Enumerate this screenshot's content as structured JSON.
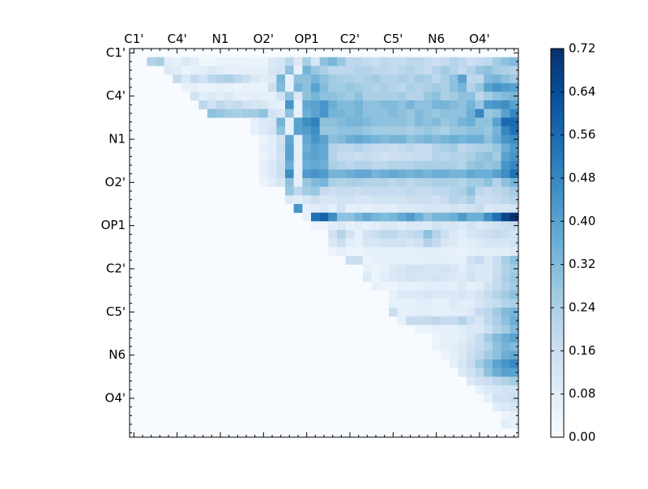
{
  "chart_data": {
    "type": "heatmap",
    "title": "",
    "xlabel": "",
    "ylabel": "",
    "grid": false,
    "legend": "colorbar-right",
    "colormap": "Blues",
    "colormap_stops": [
      "#f7fbff",
      "#deebf7",
      "#c6dbef",
      "#9ecae1",
      "#6baed6",
      "#4292c6",
      "#2171b5",
      "#08519c",
      "#08306b"
    ],
    "n": 45,
    "x_tick_labels": [
      "C1'",
      "C4'",
      "N1",
      "O2'",
      "OP1",
      "C2'",
      "C5'",
      "N6",
      "O4'"
    ],
    "y_tick_labels": [
      "C1'",
      "C4'",
      "N1",
      "O2'",
      "OP1",
      "C2'",
      "C5'",
      "N6",
      "O4'"
    ],
    "tick_index_positions": [
      0,
      5,
      10,
      15,
      20,
      25,
      30,
      35,
      40
    ],
    "value_range": [
      0.0,
      0.72
    ],
    "colorbar_ticks": [
      "0.00",
      "0.08",
      "0.16",
      "0.24",
      "0.32",
      "0.40",
      "0.48",
      "0.56",
      "0.64",
      "0.72"
    ],
    "row_bands": [
      {
        "row": 1,
        "start": 2,
        "values": [
          0.22,
          0.25,
          0.08,
          0.06,
          0.1,
          0.08,
          0.03,
          0.03,
          0.05,
          0.05,
          0.05,
          0.04,
          0.04,
          0.04,
          0.1,
          0.12,
          0.2,
          0.1,
          0.25,
          0.12,
          0.3,
          0.34,
          0.28,
          0.2,
          0.2,
          0.18,
          0.16,
          0.2,
          0.18,
          0.18,
          0.2,
          0.2,
          0.18,
          0.15,
          0.18,
          0.22,
          0.2,
          0.15,
          0.18,
          0.2,
          0.26,
          0.3,
          0.32
        ]
      },
      {
        "row": 2,
        "start": 4,
        "values": [
          0.1,
          0.08,
          0.04,
          0.06,
          0.08,
          0.1,
          0.08,
          0.06,
          0.06,
          0.06,
          0.06,
          0.06,
          0.12,
          0.14,
          0.3,
          0.06,
          0.34,
          0.28,
          0.24,
          0.2,
          0.2,
          0.2,
          0.22,
          0.22,
          0.2,
          0.2,
          0.18,
          0.2,
          0.22,
          0.2,
          0.18,
          0.22,
          0.26,
          0.22,
          0.18,
          0.22,
          0.28,
          0.3,
          0.26,
          0.24,
          0.22
        ]
      },
      {
        "row": 3,
        "start": 5,
        "values": [
          0.18,
          0.1,
          0.18,
          0.14,
          0.2,
          0.22,
          0.24,
          0.2,
          0.16,
          0.1,
          0.08,
          0.1,
          0.34,
          0.06,
          0.3,
          0.3,
          0.34,
          0.3,
          0.26,
          0.24,
          0.24,
          0.22,
          0.24,
          0.26,
          0.22,
          0.22,
          0.24,
          0.22,
          0.26,
          0.24,
          0.2,
          0.24,
          0.3,
          0.4,
          0.2,
          0.2,
          0.32,
          0.34,
          0.3,
          0.26
        ]
      },
      {
        "row": 4,
        "start": 6,
        "values": [
          0.05,
          0.06,
          0.04,
          0.05,
          0.06,
          0.05,
          0.04,
          0.05,
          0.05,
          0.05,
          0.16,
          0.32,
          0.06,
          0.34,
          0.3,
          0.4,
          0.32,
          0.26,
          0.26,
          0.28,
          0.26,
          0.24,
          0.22,
          0.24,
          0.22,
          0.2,
          0.24,
          0.22,
          0.24,
          0.26,
          0.24,
          0.3,
          0.34,
          0.22,
          0.28,
          0.4,
          0.44,
          0.42,
          0.4
        ]
      },
      {
        "row": 5,
        "start": 7,
        "values": [
          0.14,
          0.08,
          0.1,
          0.08,
          0.1,
          0.06,
          0.06,
          0.08,
          0.06,
          0.06,
          0.14,
          0.3,
          0.1,
          0.3,
          0.34,
          0.3,
          0.3,
          0.28,
          0.26,
          0.3,
          0.24,
          0.24,
          0.24,
          0.24,
          0.26,
          0.22,
          0.22,
          0.28,
          0.3,
          0.24,
          0.26,
          0.3,
          0.3,
          0.2,
          0.26,
          0.3,
          0.32,
          0.34
        ]
      },
      {
        "row": 6,
        "start": 8,
        "values": [
          0.2,
          0.14,
          0.2,
          0.16,
          0.18,
          0.14,
          0.12,
          0.12,
          0.08,
          0.06,
          0.44,
          0.06,
          0.38,
          0.4,
          0.44,
          0.36,
          0.32,
          0.32,
          0.34,
          0.3,
          0.3,
          0.32,
          0.32,
          0.3,
          0.34,
          0.3,
          0.3,
          0.34,
          0.34,
          0.32,
          0.3,
          0.34,
          0.28,
          0.42,
          0.44,
          0.46,
          0.4
        ]
      },
      {
        "row": 7,
        "start": 9,
        "values": [
          0.3,
          0.28,
          0.26,
          0.24,
          0.26,
          0.26,
          0.3,
          0.14,
          0.1,
          0.3,
          0.06,
          0.36,
          0.4,
          0.44,
          0.34,
          0.34,
          0.32,
          0.34,
          0.3,
          0.3,
          0.3,
          0.32,
          0.3,
          0.28,
          0.32,
          0.3,
          0.28,
          0.3,
          0.3,
          0.3,
          0.36,
          0.48,
          0.28,
          0.3,
          0.4,
          0.48,
          0.46
        ]
      },
      {
        "row": 8,
        "start": 14,
        "values": [
          0.06,
          0.1,
          0.12,
          0.34,
          0.06,
          0.4,
          0.46,
          0.5,
          0.3,
          0.3,
          0.32,
          0.34,
          0.34,
          0.32,
          0.3,
          0.3,
          0.3,
          0.3,
          0.28,
          0.32,
          0.3,
          0.32,
          0.28,
          0.3,
          0.34,
          0.36,
          0.3,
          0.3,
          0.4,
          0.56,
          0.56,
          0.6
        ]
      },
      {
        "row": 9,
        "start": 14,
        "values": [
          0.06,
          0.1,
          0.14,
          0.3,
          0.06,
          0.4,
          0.42,
          0.46,
          0.28,
          0.28,
          0.3,
          0.3,
          0.3,
          0.28,
          0.26,
          0.26,
          0.26,
          0.26,
          0.24,
          0.26,
          0.28,
          0.26,
          0.24,
          0.28,
          0.28,
          0.3,
          0.3,
          0.28,
          0.34,
          0.48,
          0.54,
          0.56
        ]
      },
      {
        "row": 10,
        "start": 15,
        "values": [
          0.04,
          0.08,
          0.14,
          0.38,
          0.06,
          0.38,
          0.44,
          0.4,
          0.3,
          0.32,
          0.36,
          0.38,
          0.36,
          0.34,
          0.32,
          0.34,
          0.34,
          0.3,
          0.32,
          0.34,
          0.32,
          0.34,
          0.36,
          0.34,
          0.36,
          0.36,
          0.3,
          0.36,
          0.44,
          0.46,
          0.52
        ]
      },
      {
        "row": 11,
        "start": 15,
        "values": [
          0.06,
          0.08,
          0.16,
          0.4,
          0.06,
          0.36,
          0.4,
          0.38,
          0.22,
          0.2,
          0.2,
          0.22,
          0.2,
          0.18,
          0.18,
          0.16,
          0.18,
          0.2,
          0.18,
          0.18,
          0.22,
          0.24,
          0.26,
          0.2,
          0.22,
          0.24,
          0.24,
          0.28,
          0.36,
          0.42,
          0.48
        ]
      },
      {
        "row": 12,
        "start": 15,
        "values": [
          0.04,
          0.08,
          0.14,
          0.4,
          0.06,
          0.38,
          0.4,
          0.38,
          0.22,
          0.18,
          0.18,
          0.16,
          0.18,
          0.16,
          0.14,
          0.16,
          0.16,
          0.16,
          0.18,
          0.18,
          0.22,
          0.2,
          0.22,
          0.22,
          0.24,
          0.28,
          0.3,
          0.26,
          0.4,
          0.44,
          0.5
        ]
      },
      {
        "row": 13,
        "start": 15,
        "values": [
          0.06,
          0.1,
          0.16,
          0.36,
          0.06,
          0.36,
          0.38,
          0.36,
          0.24,
          0.22,
          0.2,
          0.22,
          0.22,
          0.2,
          0.2,
          0.22,
          0.22,
          0.22,
          0.24,
          0.24,
          0.24,
          0.24,
          0.24,
          0.22,
          0.28,
          0.3,
          0.28,
          0.3,
          0.44,
          0.48,
          0.5
        ]
      },
      {
        "row": 14,
        "start": 15,
        "values": [
          0.06,
          0.1,
          0.16,
          0.46,
          0.06,
          0.42,
          0.44,
          0.42,
          0.34,
          0.34,
          0.36,
          0.38,
          0.38,
          0.34,
          0.36,
          0.38,
          0.36,
          0.34,
          0.36,
          0.34,
          0.36,
          0.36,
          0.34,
          0.34,
          0.38,
          0.36,
          0.36,
          0.4,
          0.46,
          0.54,
          0.58
        ]
      },
      {
        "row": 15,
        "start": 15,
        "values": [
          0.04,
          0.08,
          0.12,
          0.3,
          0.06,
          0.28,
          0.32,
          0.34,
          0.24,
          0.22,
          0.24,
          0.24,
          0.22,
          0.22,
          0.22,
          0.2,
          0.22,
          0.2,
          0.22,
          0.22,
          0.24,
          0.24,
          0.24,
          0.22,
          0.26,
          0.26,
          0.3,
          0.22,
          0.3,
          0.34,
          0.36
        ]
      },
      {
        "row": 16,
        "start": 18,
        "values": [
          0.28,
          0.2,
          0.26,
          0.28,
          0.18,
          0.16,
          0.18,
          0.18,
          0.16,
          0.18,
          0.18,
          0.18,
          0.18,
          0.18,
          0.2,
          0.18,
          0.18,
          0.2,
          0.2,
          0.22,
          0.24,
          0.3,
          0.2,
          0.18,
          0.2,
          0.22,
          0.26
        ]
      },
      {
        "row": 17,
        "start": 18,
        "values": [
          0.1,
          0.08,
          0.12,
          0.16,
          0.12,
          0.12,
          0.14,
          0.14,
          0.12,
          0.12,
          0.14,
          0.14,
          0.14,
          0.14,
          0.16,
          0.16,
          0.16,
          0.14,
          0.18,
          0.22,
          0.2,
          0.24,
          0.16,
          0.16,
          0.18,
          0.2,
          0.22
        ]
      },
      {
        "row": 18,
        "start": 19,
        "values": [
          0.44,
          0.06,
          0.08,
          0.1,
          0.06,
          0.14,
          0.06,
          0.08,
          0.06,
          0.08,
          0.08,
          0.08,
          0.1,
          0.1,
          0.1,
          0.12,
          0.12,
          0.12,
          0.14,
          0.12,
          0.14,
          0.18,
          0.1,
          0.12,
          0.12,
          0.14
        ]
      },
      {
        "row": 19,
        "start": 20,
        "values": [
          0.06,
          0.54,
          0.58,
          0.46,
          0.3,
          0.3,
          0.34,
          0.38,
          0.34,
          0.32,
          0.34,
          0.38,
          0.42,
          0.36,
          0.3,
          0.34,
          0.34,
          0.36,
          0.42,
          0.36,
          0.36,
          0.46,
          0.54,
          0.66,
          0.72
        ]
      },
      {
        "row": 20,
        "start": 21,
        "values": [
          0.04,
          0.04,
          0.08,
          0.1,
          0.06,
          0.08,
          0.06,
          0.08,
          0.1,
          0.1,
          0.08,
          0.1,
          0.1,
          0.1,
          0.14,
          0.12,
          0.12,
          0.1,
          0.14,
          0.1,
          0.12,
          0.14,
          0.16,
          0.18
        ]
      },
      {
        "row": 21,
        "start": 23,
        "values": [
          0.14,
          0.22,
          0.14,
          0.06,
          0.14,
          0.16,
          0.2,
          0.2,
          0.16,
          0.18,
          0.2,
          0.3,
          0.22,
          0.16,
          0.1,
          0.08,
          0.12,
          0.14,
          0.16,
          0.18,
          0.16,
          0.14
        ]
      },
      {
        "row": 22,
        "start": 23,
        "values": [
          0.1,
          0.16,
          0.08,
          0.06,
          0.12,
          0.12,
          0.14,
          0.14,
          0.14,
          0.12,
          0.14,
          0.22,
          0.18,
          0.12,
          0.1,
          0.06,
          0.08,
          0.1,
          0.12,
          0.12,
          0.12,
          0.14
        ]
      },
      {
        "row": 23,
        "start": 23,
        "values": [
          0.04,
          0.06,
          0.04,
          0.04,
          0.06,
          0.06,
          0.06,
          0.06,
          0.06,
          0.06,
          0.08,
          0.08,
          0.08,
          0.06,
          0.06,
          0.05,
          0.06,
          0.08,
          0.08,
          0.08,
          0.08,
          0.1
        ]
      },
      {
        "row": 24,
        "start": 25,
        "values": [
          0.16,
          0.16,
          0.04,
          0.06,
          0.06,
          0.06,
          0.06,
          0.06,
          0.06,
          0.08,
          0.08,
          0.08,
          0.06,
          0.06,
          0.14,
          0.18,
          0.1,
          0.16,
          0.24,
          0.3
        ]
      },
      {
        "row": 25,
        "start": 27,
        "values": [
          0.06,
          0.04,
          0.06,
          0.1,
          0.12,
          0.14,
          0.14,
          0.12,
          0.12,
          0.14,
          0.12,
          0.08,
          0.12,
          0.1,
          0.1,
          0.16,
          0.22,
          0.26
        ]
      },
      {
        "row": 26,
        "start": 27,
        "values": [
          0.1,
          0.04,
          0.08,
          0.1,
          0.12,
          0.14,
          0.12,
          0.12,
          0.14,
          0.12,
          0.1,
          0.1,
          0.14,
          0.1,
          0.1,
          0.18,
          0.24,
          0.28
        ]
      },
      {
        "row": 27,
        "start": 28,
        "values": [
          0.06,
          0.04,
          0.04,
          0.06,
          0.06,
          0.06,
          0.08,
          0.08,
          0.08,
          0.06,
          0.1,
          0.06,
          0.08,
          0.14,
          0.18,
          0.22,
          0.26
        ]
      },
      {
        "row": 28,
        "start": 30,
        "values": [
          0.06,
          0.1,
          0.1,
          0.1,
          0.12,
          0.1,
          0.1,
          0.1,
          0.12,
          0.1,
          0.14,
          0.18,
          0.22,
          0.26,
          0.3
        ]
      },
      {
        "row": 29,
        "start": 30,
        "values": [
          0.06,
          0.06,
          0.06,
          0.08,
          0.08,
          0.06,
          0.06,
          0.1,
          0.08,
          0.08,
          0.12,
          0.16,
          0.18,
          0.22,
          0.24
        ]
      },
      {
        "row": 30,
        "start": 30,
        "values": [
          0.16,
          0.06,
          0.06,
          0.08,
          0.08,
          0.06,
          0.06,
          0.08,
          0.08,
          0.1,
          0.18,
          0.2,
          0.26,
          0.32,
          0.34
        ]
      },
      {
        "row": 31,
        "start": 31,
        "values": [
          0.06,
          0.18,
          0.18,
          0.18,
          0.2,
          0.18,
          0.18,
          0.22,
          0.16,
          0.12,
          0.2,
          0.24,
          0.3,
          0.36
        ]
      },
      {
        "row": 32,
        "start": 33,
        "values": [
          0.04,
          0.04,
          0.06,
          0.06,
          0.06,
          0.08,
          0.1,
          0.1,
          0.16,
          0.22,
          0.26,
          0.32
        ]
      },
      {
        "row": 33,
        "start": 35,
        "values": [
          0.04,
          0.06,
          0.06,
          0.08,
          0.12,
          0.18,
          0.26,
          0.32,
          0.36,
          0.4
        ]
      },
      {
        "row": 34,
        "start": 35,
        "values": [
          0.04,
          0.06,
          0.08,
          0.1,
          0.14,
          0.18,
          0.22,
          0.3,
          0.34,
          0.32
        ]
      },
      {
        "row": 35,
        "start": 36,
        "values": [
          0.04,
          0.06,
          0.1,
          0.16,
          0.2,
          0.26,
          0.3,
          0.36,
          0.38
        ]
      },
      {
        "row": 36,
        "start": 37,
        "values": [
          0.06,
          0.12,
          0.18,
          0.26,
          0.32,
          0.4,
          0.44,
          0.48
        ]
      },
      {
        "row": 37,
        "start": 38,
        "values": [
          0.1,
          0.14,
          0.2,
          0.3,
          0.36,
          0.4,
          0.4
        ]
      },
      {
        "row": 38,
        "start": 39,
        "values": [
          0.1,
          0.14,
          0.16,
          0.2,
          0.22,
          0.26
        ]
      },
      {
        "row": 39,
        "start": 40,
        "values": [
          0.06,
          0.1,
          0.12,
          0.14,
          0.14
        ]
      },
      {
        "row": 40,
        "start": 41,
        "values": [
          0.06,
          0.14,
          0.14,
          0.16
        ]
      },
      {
        "row": 41,
        "start": 42,
        "values": [
          0.08,
          0.1,
          0.12
        ]
      },
      {
        "row": 42,
        "start": 43,
        "values": [
          0.04,
          0.06
        ]
      },
      {
        "row": 43,
        "start": 43,
        "values": [
          0.08,
          0.06
        ]
      }
    ]
  }
}
